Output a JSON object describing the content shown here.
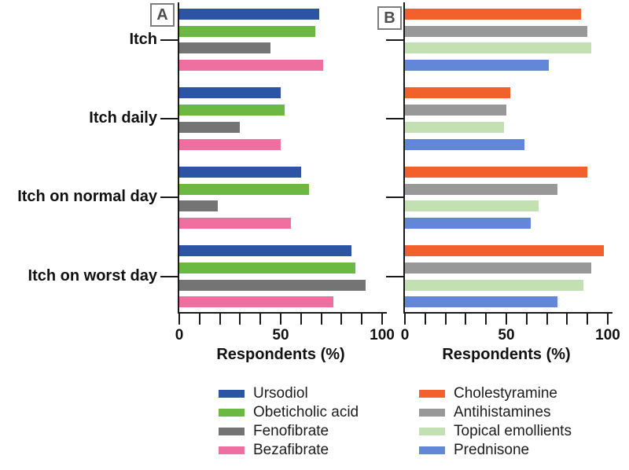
{
  "chart_data": [
    {
      "type": "bar",
      "panel_label": "A",
      "orientation": "horizontal",
      "title": "",
      "xlabel": "Respondents (%)",
      "xlim": [
        0,
        100
      ],
      "xticks": [
        0,
        50,
        100
      ],
      "minor_tick_step": 10,
      "show_category_labels": true,
      "categories": [
        "Itch",
        "Itch daily",
        "Itch on normal day",
        "Itch on worst day"
      ],
      "series": [
        {
          "name": "Ursodiol",
          "color": "#2B55A4",
          "values": [
            69,
            50,
            60,
            85
          ]
        },
        {
          "name": "Obeticholic acid",
          "color": "#6BB843",
          "values": [
            67,
            52,
            64,
            87
          ]
        },
        {
          "name": "Fenofibrate",
          "color": "#747474",
          "values": [
            45,
            30,
            19,
            92
          ]
        },
        {
          "name": "Bezafibrate",
          "color": "#EF6FA0",
          "values": [
            71,
            50,
            55,
            76
          ]
        }
      ]
    },
    {
      "type": "bar",
      "panel_label": "B",
      "orientation": "horizontal",
      "title": "",
      "xlabel": "Respondents (%)",
      "xlim": [
        0,
        100
      ],
      "xticks": [
        0,
        50,
        100
      ],
      "minor_tick_step": 10,
      "show_category_labels": false,
      "categories": [
        "Itch",
        "Itch daily",
        "Itch on normal day",
        "Itch on worst day"
      ],
      "series": [
        {
          "name": "Cholestyramine",
          "color": "#F2612C",
          "values": [
            87,
            52,
            90,
            98
          ]
        },
        {
          "name": "Antihistamines",
          "color": "#989898",
          "values": [
            90,
            50,
            75,
            92
          ]
        },
        {
          "name": "Topical emollients",
          "color": "#C3E0B2",
          "values": [
            92,
            49,
            66,
            88
          ]
        },
        {
          "name": "Prednisone",
          "color": "#6287D8",
          "values": [
            71,
            59,
            62,
            75
          ]
        }
      ]
    }
  ]
}
